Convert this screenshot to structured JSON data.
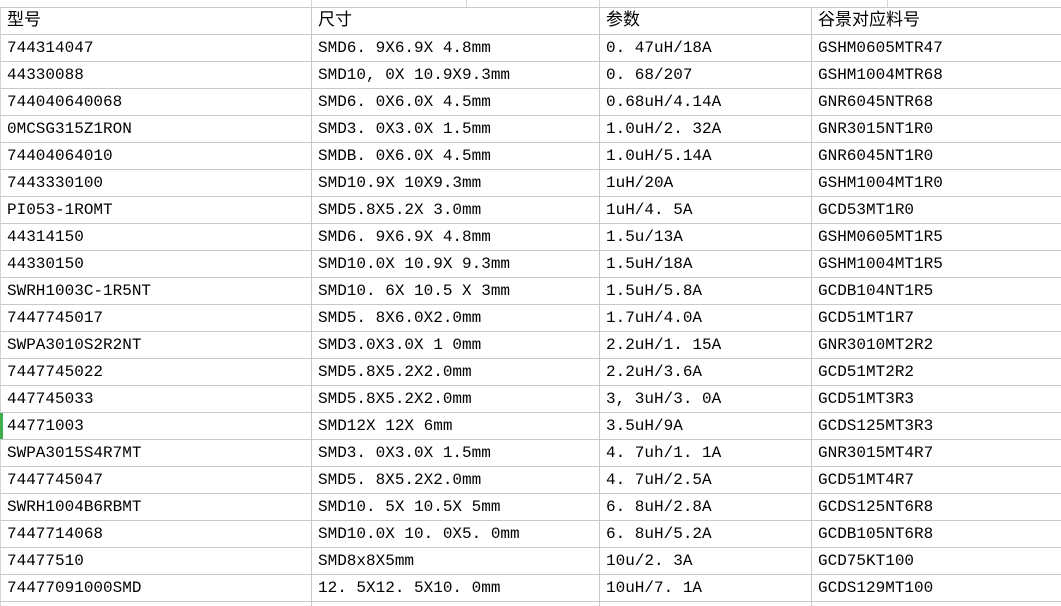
{
  "table": {
    "columns": [
      {
        "key": "model",
        "label": "型号"
      },
      {
        "key": "size",
        "label": "尺寸"
      },
      {
        "key": "params",
        "label": "参数"
      },
      {
        "key": "gujing",
        "label": "谷景对应料号"
      }
    ],
    "rows": [
      {
        "model": "744314047",
        "size": "SMD6. 9X6.9X 4.8mm",
        "params": "0. 47uH/18A",
        "gujing": "GSHM0605MTR47"
      },
      {
        "model": "44330088",
        "size": "SMD10, 0X 10.9X9.3mm",
        "params": "0. 68/207",
        "gujing": "GSHM1004MTR68"
      },
      {
        "model": "744040640068",
        "size": "SMD6. 0X6.0X 4.5mm",
        "params": "0.68uH/4.14A",
        "gujing": "GNR6045NTR68"
      },
      {
        "model": "0MCSG315Z1RON",
        "size": "SMD3. 0X3.0X 1.5mm",
        "params": "1.0uH/2. 32A",
        "gujing": "GNR3015NT1R0"
      },
      {
        "model": "74404064010",
        "size": "SMDB. 0X6.0X 4.5mm",
        "params": "1.0uH/5.14A",
        "gujing": "GNR6045NT1R0"
      },
      {
        "model": "7443330100",
        "size": "SMD10.9X 10X9.3mm",
        "params": "1uH/20A",
        "gujing": "GSHM1004MT1R0"
      },
      {
        "model": "PI053-1ROMT",
        "size": "SMD5.8X5.2X 3.0mm",
        "params": "1uH/4. 5A",
        "gujing": "GCD53MT1R0"
      },
      {
        "model": "44314150",
        "size": "SMD6. 9X6.9X 4.8mm",
        "params": "1.5u/13A",
        "gujing": "GSHM0605MT1R5"
      },
      {
        "model": "44330150",
        "size": "SMD10.0X 10.9X 9.3mm",
        "params": "1.5uH/18A",
        "gujing": "GSHM1004MT1R5"
      },
      {
        "model": "SWRH1003C-1R5NT",
        "size": "SMD10. 6X 10.5 X 3mm",
        "params": "1.5uH/5.8A",
        "gujing": "GCDB104NT1R5"
      },
      {
        "model": "7447745017",
        "size": "SMD5. 8X6.0X2.0mm",
        "params": "1.7uH/4.0A",
        "gujing": "GCD51MT1R7"
      },
      {
        "model": "SWPA3010S2R2NT",
        "size": "SMD3.0X3.0X 1 0mm",
        "params": "2.2uH/1. 15A",
        "gujing": "GNR3010MT2R2"
      },
      {
        "model": "7447745022",
        "size": "SMD5.8X5.2X2.0mm",
        "params": "2.2uH/3.6A",
        "gujing": "GCD51MT2R2"
      },
      {
        "model": "447745033",
        "size": "SMD5.8X5.2X2.0mm",
        "params": "3, 3uH/3. 0A",
        "gujing": "GCD51MT3R3"
      },
      {
        "model": "44771003",
        "size": "SMD12X 12X 6mm",
        "params": "3.5uH/9A",
        "gujing": "GCDS125MT3R3"
      },
      {
        "model": "SWPA3015S4R7MT",
        "size": "SMD3. 0X3.0X 1.5mm",
        "params": "4. 7uh/1. 1A",
        "gujing": "GNR3015MT4R7"
      },
      {
        "model": "7447745047",
        "size": "SMD5. 8X5.2X2.0mm",
        "params": "4. 7uH/2.5A",
        "gujing": "GCD51MT4R7"
      },
      {
        "model": "SWRH1004B6RBMT",
        "size": "SMD10. 5X 10.5X 5mm",
        "params": "6. 8uH/2.8A",
        "gujing": "GCDS125NT6R8"
      },
      {
        "model": "7447714068",
        "size": "SMD10.0X 10. 0X5. 0mm",
        "params": "6. 8uH/5.2A",
        "gujing": "GCDB105NT6R8"
      },
      {
        "model": "74477510",
        "size": "SMD8x8X5mm",
        "params": "10u/2. 3A",
        "gujing": "GCD75KT100"
      },
      {
        "model": "74477091000SMD",
        "size": "12. 5X12. 5X10. 0mm",
        "params": "10uH/7. 1A",
        "gujing": "GCDS129MT100"
      }
    ]
  },
  "marker": {
    "row_index": 14,
    "row_model": "44771003",
    "color": "#3fae4e"
  },
  "colors": {
    "grid_line": "#c9c9c9",
    "text": "#000000",
    "background": "#ffffff"
  }
}
